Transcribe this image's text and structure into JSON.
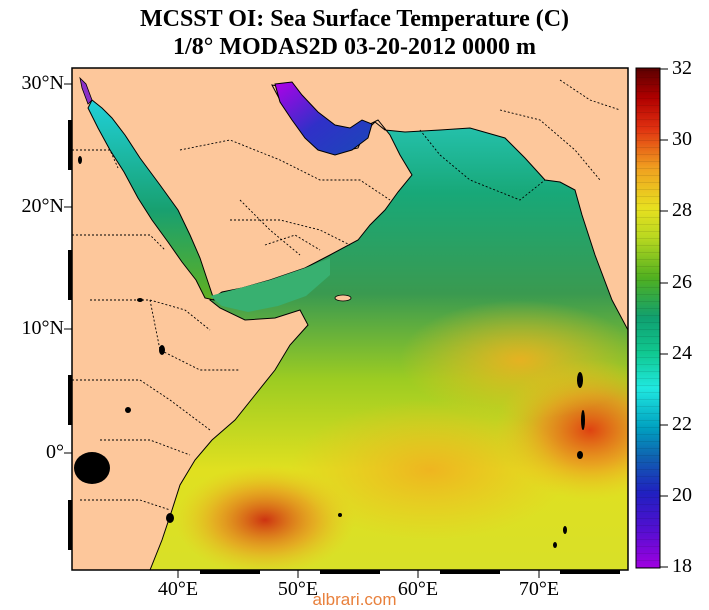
{
  "title": {
    "line1": "MCSST OI:  Sea Surface Temperature (C)",
    "line2": "1/8° MODAS2D 03-20-2012 0000 m"
  },
  "map": {
    "lat_labels": [
      "30°N",
      "20°N",
      "10°N",
      "0°"
    ],
    "lon_labels": [
      "40°E",
      "50°E",
      "60°E",
      "70°E"
    ],
    "land_color": "#fdc79b",
    "border_style": "dotted"
  },
  "colorbar": {
    "labels": [
      "32",
      "30",
      "28",
      "26",
      "24",
      "22",
      "20",
      "18"
    ],
    "range": [
      18,
      32
    ],
    "colors": [
      "#a000e0",
      "#2020c0",
      "#00b8c8",
      "#20e8e0",
      "#10a070",
      "#50b020",
      "#e8e020",
      "#f0a020",
      "#e03010",
      "#7a0000"
    ]
  },
  "watermark": "albrari.com"
}
